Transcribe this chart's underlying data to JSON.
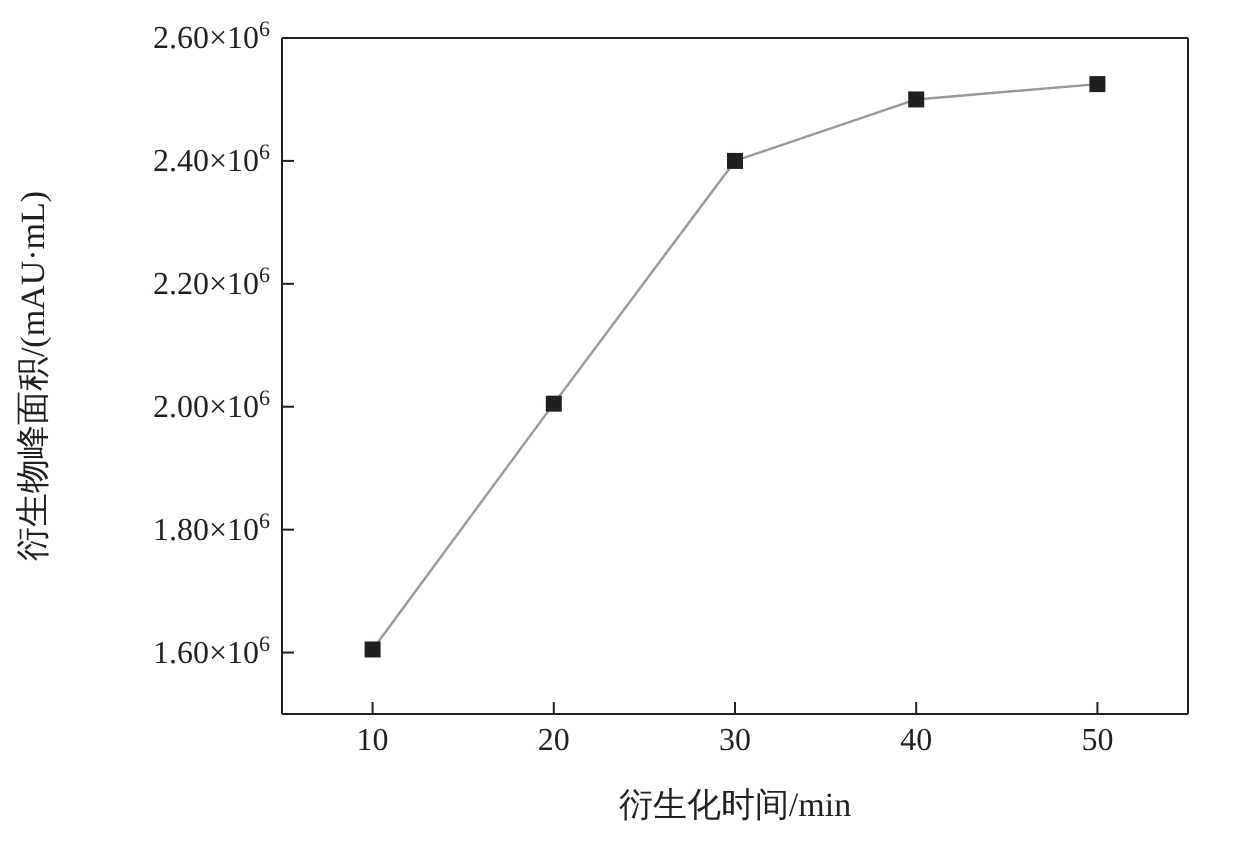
{
  "chart_data": {
    "type": "line",
    "xlabel": "衍生化时间/min",
    "ylabel": "衍生物峰面积/(mAU·mL)",
    "x": [
      10,
      20,
      30,
      40,
      50
    ],
    "series": [
      {
        "color": "#999999",
        "values": [
          1605000,
          2005000,
          2400000,
          2500000,
          2525000
        ]
      }
    ],
    "marker": "square",
    "line_style": "solid",
    "grid": false,
    "legend": false,
    "xlim": [
      5,
      55
    ],
    "xticks": [
      10,
      20,
      30,
      40,
      50
    ],
    "ylim": [
      1500000,
      2600000
    ],
    "yticks": [
      {
        "value": 1600000,
        "label": "1.60×10$^{6}$"
      },
      {
        "value": 1800000,
        "label": "1.80×10$^{6}$"
      },
      {
        "value": 2000000,
        "label": "2.00×10$^{6}$"
      },
      {
        "value": 2200000,
        "label": "2.20×10$^{6}$"
      },
      {
        "value": 2400000,
        "label": "2.40×10$^{6}$"
      },
      {
        "value": 2600000,
        "label": "2.60×10$^{6}$"
      }
    ]
  }
}
